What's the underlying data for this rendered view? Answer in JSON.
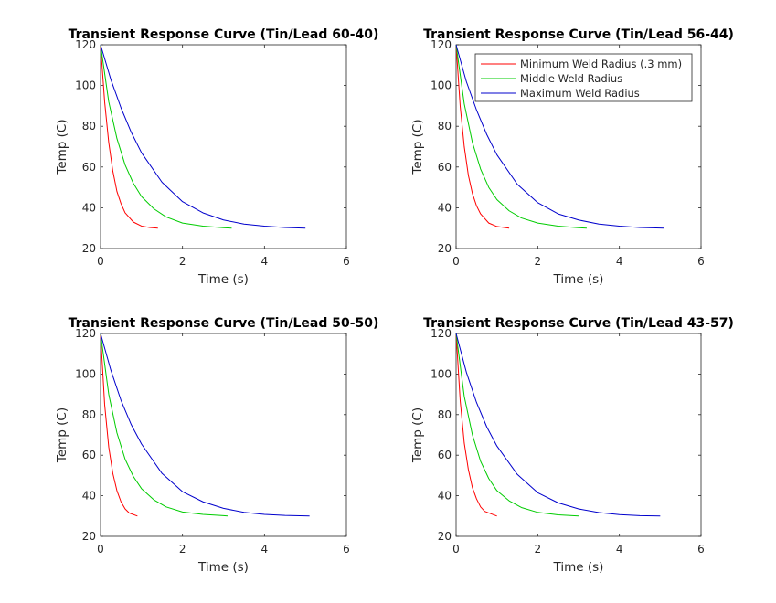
{
  "chart_data": [
    {
      "type": "line",
      "title": "Transient Response Curve (Tin/Lead 60-40)",
      "xlabel": "Time (s)",
      "ylabel": "Temp (C)",
      "xlim": [
        0,
        6
      ],
      "ylim": [
        20,
        120
      ],
      "xticks": [
        0,
        2,
        4,
        6
      ],
      "yticks": [
        20,
        40,
        60,
        80,
        100,
        120
      ],
      "series": [
        {
          "color": "#ff0000",
          "x": [
            0,
            0.1,
            0.2,
            0.3,
            0.4,
            0.5,
            0.6,
            0.8,
            1.0,
            1.2,
            1.4
          ],
          "y": [
            120,
            92,
            72,
            58,
            48,
            42,
            37.5,
            33,
            31,
            30.3,
            30
          ]
        },
        {
          "color": "#00cc00",
          "x": [
            0,
            0.2,
            0.4,
            0.6,
            0.8,
            1.0,
            1.3,
            1.6,
            2.0,
            2.5,
            3.0,
            3.2
          ],
          "y": [
            120,
            92,
            74,
            61,
            52,
            45.5,
            39.5,
            35.5,
            32.5,
            31,
            30.2,
            30
          ]
        },
        {
          "color": "#0000cc",
          "x": [
            0,
            0.25,
            0.5,
            0.75,
            1.0,
            1.5,
            2.0,
            2.5,
            3.0,
            3.5,
            4.0,
            4.5,
            5.0
          ],
          "y": [
            120,
            103,
            89,
            77,
            67,
            52.5,
            43,
            37.5,
            34,
            32,
            31,
            30.3,
            30
          ]
        }
      ]
    },
    {
      "type": "line",
      "title": "Transient Response Curve (Tin/Lead 56-44)",
      "xlabel": "Time (s)",
      "ylabel": "Temp (C)",
      "xlim": [
        0,
        6
      ],
      "ylim": [
        20,
        120
      ],
      "xticks": [
        0,
        2,
        4,
        6
      ],
      "yticks": [
        20,
        40,
        60,
        80,
        100,
        120
      ],
      "legend": {
        "position": "top-right",
        "entries": [
          {
            "label": "Minimum Weld Radius (.3 mm)",
            "color": "#ff0000"
          },
          {
            "label": "Middle Weld Radius",
            "color": "#00cc00"
          },
          {
            "label": "Maximum Weld Radius",
            "color": "#0000cc"
          }
        ]
      },
      "series": [
        {
          "color": "#ff0000",
          "x": [
            0,
            0.1,
            0.2,
            0.3,
            0.4,
            0.5,
            0.6,
            0.8,
            1.0,
            1.3
          ],
          "y": [
            120,
            90,
            70,
            56,
            47,
            41,
            37,
            32.5,
            30.8,
            30
          ]
        },
        {
          "color": "#00cc00",
          "x": [
            0,
            0.2,
            0.4,
            0.6,
            0.8,
            1.0,
            1.3,
            1.6,
            2.0,
            2.5,
            3.0,
            3.2
          ],
          "y": [
            120,
            91,
            72,
            59,
            50,
            44,
            38.5,
            35,
            32.5,
            31,
            30.2,
            30
          ]
        },
        {
          "color": "#0000cc",
          "x": [
            0,
            0.25,
            0.5,
            0.75,
            1.0,
            1.5,
            2.0,
            2.5,
            3.0,
            3.5,
            4.0,
            4.5,
            5.1
          ],
          "y": [
            120,
            102,
            88,
            76,
            66,
            51.5,
            42.5,
            37,
            34,
            32,
            31,
            30.3,
            30
          ]
        }
      ]
    },
    {
      "type": "line",
      "title": "Transient Response Curve (Tin/Lead 50-50)",
      "xlabel": "Time (s)",
      "ylabel": "Temp (C)",
      "xlim": [
        0,
        6
      ],
      "ylim": [
        20,
        120
      ],
      "xticks": [
        0,
        2,
        4,
        6
      ],
      "yticks": [
        20,
        40,
        60,
        80,
        100,
        120
      ],
      "series": [
        {
          "color": "#ff0000",
          "x": [
            0,
            0.1,
            0.2,
            0.3,
            0.4,
            0.5,
            0.6,
            0.7,
            0.9
          ],
          "y": [
            120,
            85,
            64,
            51,
            42.5,
            37,
            33.5,
            31.5,
            30
          ]
        },
        {
          "color": "#00cc00",
          "x": [
            0,
            0.2,
            0.4,
            0.6,
            0.8,
            1.0,
            1.3,
            1.6,
            2.0,
            2.5,
            3.0,
            3.1
          ],
          "y": [
            120,
            90,
            71,
            58,
            49.5,
            43.5,
            38,
            34.5,
            32,
            30.8,
            30.2,
            30
          ]
        },
        {
          "color": "#0000cc",
          "x": [
            0,
            0.25,
            0.5,
            0.75,
            1.0,
            1.5,
            2.0,
            2.5,
            3.0,
            3.5,
            4.0,
            4.5,
            5.1
          ],
          "y": [
            120,
            102,
            87,
            75,
            65.5,
            51,
            42,
            37,
            33.8,
            31.8,
            30.8,
            30.3,
            30
          ]
        }
      ]
    },
    {
      "type": "line",
      "title": "Transient Response Curve (Tin/Lead 43-57)",
      "xlabel": "Time (s)",
      "ylabel": "Temp (C)",
      "xlim": [
        0,
        6
      ],
      "ylim": [
        20,
        120
      ],
      "xticks": [
        0,
        2,
        4,
        6
      ],
      "yticks": [
        20,
        40,
        60,
        80,
        100,
        120
      ],
      "series": [
        {
          "color": "#ff0000",
          "x": [
            0,
            0.1,
            0.2,
            0.3,
            0.4,
            0.5,
            0.6,
            0.7,
            1.0
          ],
          "y": [
            120,
            87,
            66,
            53,
            44,
            38.5,
            34.5,
            32.3,
            30
          ]
        },
        {
          "color": "#00cc00",
          "x": [
            0,
            0.2,
            0.4,
            0.6,
            0.8,
            1.0,
            1.3,
            1.6,
            2.0,
            2.5,
            3.0
          ],
          "y": [
            120,
            89,
            70,
            57,
            48.5,
            42.5,
            37.5,
            34.2,
            31.8,
            30.6,
            30
          ]
        },
        {
          "color": "#0000cc",
          "x": [
            0,
            0.25,
            0.5,
            0.75,
            1.0,
            1.5,
            2.0,
            2.5,
            3.0,
            3.5,
            4.0,
            4.5,
            5.0
          ],
          "y": [
            120,
            101,
            86,
            74,
            64.5,
            50.5,
            41.5,
            36.5,
            33.5,
            31.7,
            30.7,
            30.2,
            30
          ]
        }
      ]
    }
  ]
}
